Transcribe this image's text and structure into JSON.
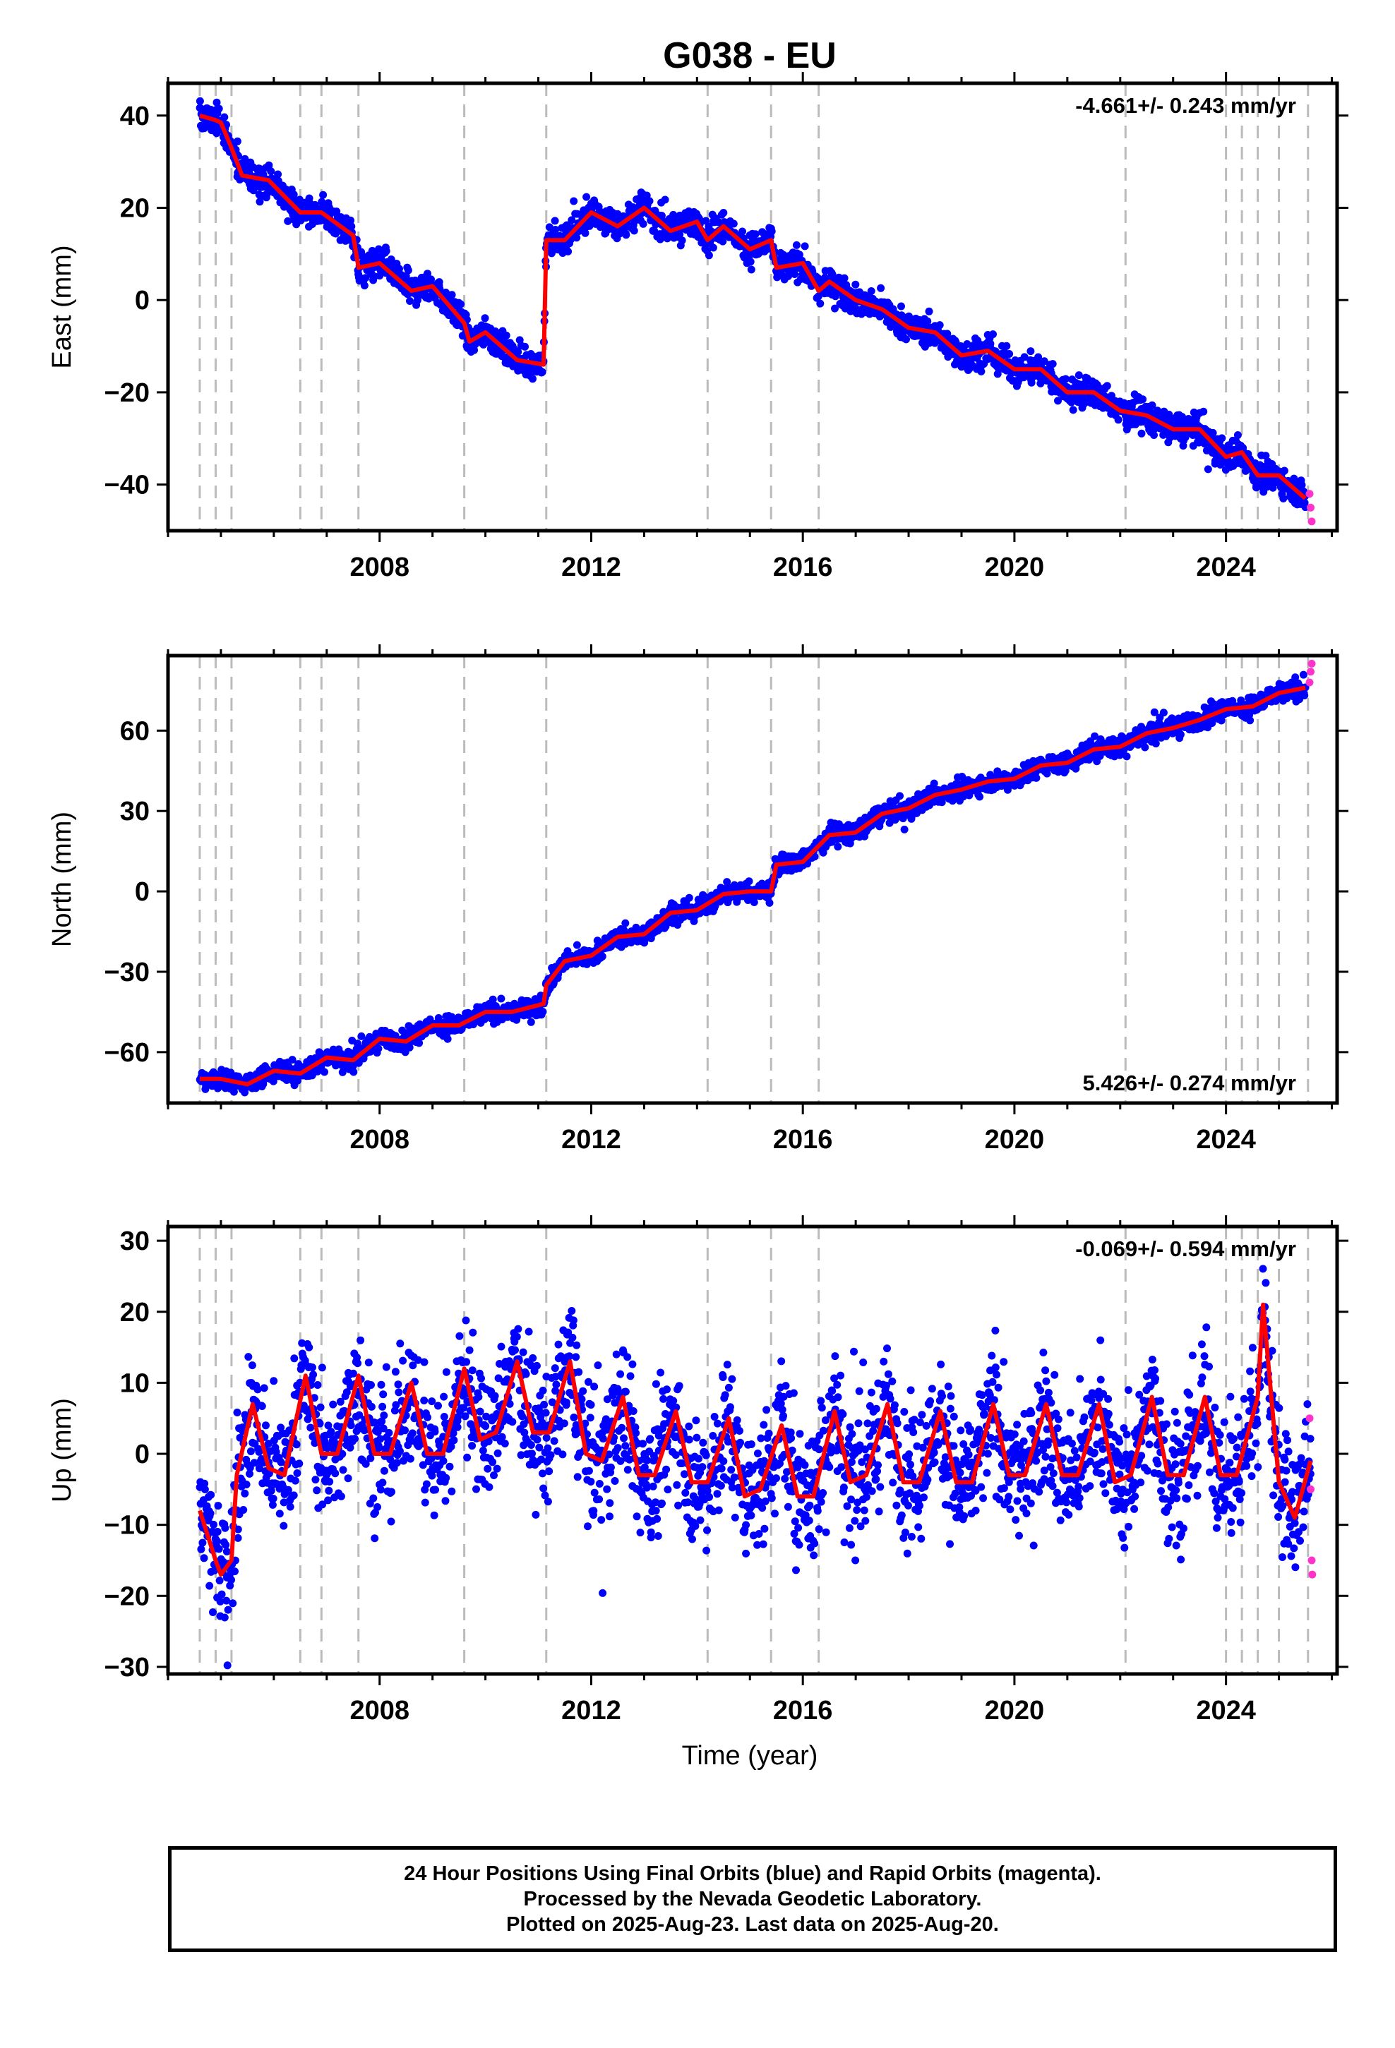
{
  "title": "G038 - EU",
  "xlabel": "Time (year)",
  "footer": {
    "line1": "24 Hour Positions Using Final Orbits (blue) and Rapid Orbits (magenta).",
    "line2": "Processed by the Nevada Geodetic Laboratory.",
    "line3": "Plotted on 2025-Aug-23. Last data on 2025-Aug-20."
  },
  "colors": {
    "final_orbits": "#0000ff",
    "rapid_orbits": "#ff33cc",
    "model_fit": "#ff0000",
    "event_lines": "#bbbbbb"
  },
  "chart_data": [
    {
      "type": "scatter",
      "name": "east",
      "ylabel": "East (mm)",
      "rate_label": "-4.661+/- 0.243 mm/yr",
      "rate_position": "top-right",
      "xlim": [
        2004.0,
        2026.1
      ],
      "ylim": [
        -50,
        47
      ],
      "x_ticks": [
        2008,
        2012,
        2016,
        2020,
        2024
      ],
      "y_ticks": [
        40,
        20,
        0,
        -20,
        -40
      ],
      "y_tick_labels": [
        "40",
        "20",
        "0",
        "−20",
        "−40"
      ],
      "x_tick_labels": [
        "2008",
        "2012",
        "2016",
        "2020",
        "2024"
      ],
      "event_lines": [
        2004.6,
        2004.9,
        2005.2,
        2006.5,
        2006.9,
        2007.6,
        2009.6,
        2011.15,
        2014.2,
        2015.4,
        2016.3,
        2022.1,
        2024.0,
        2024.3,
        2024.6,
        2025.0,
        2025.55
      ],
      "trend_fit": {
        "x": [
          2004.6,
          2004.9,
          2005.0,
          2005.2,
          2005.4,
          2005.9,
          2006.5,
          2006.9,
          2007.5,
          2007.6,
          2008.0,
          2008.6,
          2009.0,
          2009.6,
          2009.7,
          2010.0,
          2010.6,
          2011.1,
          2011.15,
          2011.5,
          2012.0,
          2012.5,
          2013.0,
          2013.5,
          2014.0,
          2014.2,
          2014.5,
          2015.0,
          2015.4,
          2015.5,
          2016.0,
          2016.3,
          2016.5,
          2017.0,
          2017.5,
          2018.0,
          2018.5,
          2019.0,
          2019.5,
          2020.0,
          2020.5,
          2021.0,
          2021.5,
          2022.0,
          2022.5,
          2023.0,
          2023.5,
          2024.0,
          2024.3,
          2024.6,
          2025.0,
          2025.5
        ],
        "y": [
          40,
          39,
          38.5,
          33,
          27,
          26,
          19,
          19,
          14,
          7,
          8,
          2,
          3,
          -5,
          -9,
          -7,
          -13,
          -14,
          13,
          13,
          19,
          16,
          20,
          15,
          17,
          13,
          16,
          11,
          13,
          7,
          8,
          2,
          4,
          0,
          -2,
          -6,
          -7,
          -12,
          -11,
          -15,
          -15,
          -20,
          -20,
          -24,
          -25,
          -28,
          -28,
          -34,
          -33,
          -38,
          -38,
          -43
        ]
      },
      "rapid_orbits": {
        "x": [
          2025.58,
          2025.6,
          2025.62
        ],
        "y": [
          -42,
          -45,
          -48
        ]
      },
      "noise_sd": 1.6
    },
    {
      "type": "scatter",
      "name": "north",
      "ylabel": "North (mm)",
      "rate_label": "5.426+/- 0.274 mm/yr",
      "rate_position": "bottom-right",
      "xlim": [
        2004.0,
        2026.1
      ],
      "ylim": [
        -79,
        88
      ],
      "x_ticks": [
        2008,
        2012,
        2016,
        2020,
        2024
      ],
      "y_ticks": [
        60,
        30,
        0,
        -30,
        -60
      ],
      "y_tick_labels": [
        "60",
        "30",
        "0",
        "−30",
        "−60"
      ],
      "x_tick_labels": [
        "2008",
        "2012",
        "2016",
        "2020",
        "2024"
      ],
      "event_lines": [
        2004.6,
        2004.9,
        2005.2,
        2006.5,
        2006.9,
        2007.6,
        2009.6,
        2011.15,
        2014.2,
        2015.4,
        2016.3,
        2022.1,
        2024.0,
        2024.3,
        2024.6,
        2025.0,
        2025.55
      ],
      "trend_fit": {
        "x": [
          2004.6,
          2005.0,
          2005.5,
          2006.0,
          2006.5,
          2007.0,
          2007.5,
          2008.0,
          2008.5,
          2009.0,
          2009.5,
          2010.0,
          2010.5,
          2011.1,
          2011.15,
          2011.5,
          2012.0,
          2012.5,
          2013.0,
          2013.5,
          2014.0,
          2014.5,
          2015.0,
          2015.4,
          2015.5,
          2016.0,
          2016.5,
          2017.0,
          2017.5,
          2018.0,
          2018.5,
          2019.0,
          2019.5,
          2020.0,
          2020.5,
          2021.0,
          2021.5,
          2022.0,
          2022.5,
          2023.0,
          2023.5,
          2024.0,
          2024.5,
          2025.0,
          2025.5
        ],
        "y": [
          -70,
          -70,
          -72,
          -67,
          -68,
          -62,
          -63,
          -55,
          -56,
          -50,
          -50,
          -45,
          -45,
          -42,
          -35,
          -26,
          -24,
          -17,
          -16,
          -8,
          -7,
          -1,
          0,
          0,
          10,
          11,
          21,
          22,
          29,
          31,
          36,
          38,
          41,
          42,
          47,
          48,
          53,
          54,
          59,
          61,
          64,
          68,
          69,
          74,
          76
        ]
      },
      "rapid_orbits": {
        "x": [
          2025.58,
          2025.6,
          2025.62
        ],
        "y": [
          78,
          82,
          85
        ]
      },
      "noise_sd": 1.8
    },
    {
      "type": "scatter",
      "name": "up",
      "ylabel": "Up (mm)",
      "rate_label": "-0.069+/- 0.594 mm/yr",
      "rate_position": "top-right",
      "xlim": [
        2004.0,
        2026.1
      ],
      "ylim": [
        -31,
        32
      ],
      "x_ticks": [
        2008,
        2012,
        2016,
        2020,
        2024
      ],
      "y_ticks": [
        30,
        20,
        10,
        0,
        -10,
        -20,
        -30
      ],
      "y_tick_labels": [
        "30",
        "20",
        "10",
        "0",
        "−10",
        "−20",
        "−30"
      ],
      "x_tick_labels": [
        "2008",
        "2012",
        "2016",
        "2020",
        "2024"
      ],
      "event_lines": [
        2004.6,
        2004.9,
        2005.2,
        2006.5,
        2006.9,
        2007.6,
        2009.6,
        2011.15,
        2014.2,
        2015.4,
        2016.3,
        2022.1,
        2024.0,
        2024.3,
        2024.6,
        2025.0,
        2025.55
      ],
      "trend_fit": {
        "x": [
          2004.6,
          2004.9,
          2005.0,
          2005.2,
          2005.3,
          2005.6,
          2005.9,
          2006.2,
          2006.6,
          2006.9,
          2007.2,
          2007.6,
          2007.9,
          2008.2,
          2008.6,
          2008.9,
          2009.2,
          2009.6,
          2009.9,
          2010.2,
          2010.6,
          2010.9,
          2011.2,
          2011.6,
          2011.9,
          2012.2,
          2012.6,
          2012.9,
          2013.2,
          2013.6,
          2013.9,
          2014.2,
          2014.6,
          2014.9,
          2015.2,
          2015.6,
          2015.9,
          2016.2,
          2016.6,
          2016.9,
          2017.2,
          2017.6,
          2017.9,
          2018.2,
          2018.6,
          2018.9,
          2019.2,
          2019.6,
          2019.9,
          2020.2,
          2020.6,
          2020.9,
          2021.2,
          2021.6,
          2021.9,
          2022.2,
          2022.6,
          2022.9,
          2023.2,
          2023.6,
          2023.9,
          2024.2,
          2024.6,
          2024.7,
          2025.0,
          2025.3,
          2025.6
        ],
        "y": [
          -8,
          -15,
          -17,
          -15,
          -3,
          7,
          -2,
          -3,
          11,
          0,
          0,
          11,
          0,
          0,
          10,
          0,
          0,
          12,
          2,
          3,
          13,
          3,
          3,
          13,
          0,
          -1,
          8,
          -3,
          -3,
          6,
          -4,
          -4,
          5,
          -6,
          -5,
          4,
          -6,
          -6,
          6,
          -4,
          -3,
          7,
          -4,
          -4,
          6,
          -4,
          -4,
          7,
          -3,
          -3,
          7,
          -3,
          -3,
          7,
          -4,
          -3,
          8,
          -3,
          -3,
          8,
          -3,
          -3,
          8,
          21,
          -4,
          -9,
          -1
        ]
      },
      "rapid_orbits": {
        "x": [
          2025.58,
          2025.6,
          2025.62,
          2025.63
        ],
        "y": [
          5,
          -5,
          -15,
          -17
        ]
      },
      "noise_sd": 4.5
    }
  ]
}
